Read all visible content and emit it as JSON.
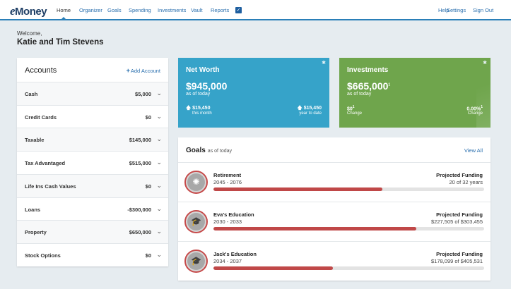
{
  "nav": {
    "logo_e": "e",
    "logo_rest": "Money",
    "items": [
      "Home",
      "Organizer",
      "Goals",
      "Spending",
      "Investments",
      "Vault",
      "Reports"
    ],
    "right_items": [
      "Help",
      "Settings",
      "Sign Out"
    ],
    "active": "Home"
  },
  "welcome": {
    "greeting": "Welcome,",
    "name": "Katie and Tim Stevens"
  },
  "accounts": {
    "title": "Accounts",
    "add_label": "Add Account",
    "rows": [
      {
        "label": "Cash",
        "value": "$5,000"
      },
      {
        "label": "Credit Cards",
        "value": "$0"
      },
      {
        "label": "Taxable",
        "value": "$145,000"
      },
      {
        "label": "Tax Advantaged",
        "value": "$515,000"
      },
      {
        "label": "Life Ins Cash Values",
        "value": "$0"
      },
      {
        "label": "Loans",
        "value": "-$300,000"
      },
      {
        "label": "Property",
        "value": "$650,000"
      },
      {
        "label": "Stock Options",
        "value": "$0"
      }
    ]
  },
  "net_worth": {
    "title": "Net Worth",
    "value": "$945,000",
    "sub": "as of today",
    "left_change": "$15,450",
    "left_label": "this month",
    "right_change": "$15,450",
    "right_label": "year to date",
    "color": "#36a3c9"
  },
  "investments": {
    "title": "Investments",
    "value": "$665,000",
    "sub": "as of today",
    "left_change": "$0",
    "left_label": "Change",
    "right_change": "0.00%",
    "right_label": "Change",
    "color": "#6fa54c"
  },
  "goals": {
    "title": "Goals",
    "asof": "as of today",
    "view_all": "View All",
    "items": [
      {
        "name": "Retirement",
        "years": "2045 - 2076",
        "heading": "Projected Funding",
        "detail": "20 of 32 years",
        "progress": 0.625,
        "icon": "sun-icon"
      },
      {
        "name": "Eva's Education",
        "years": "2030 - 2033",
        "heading": "Projected Funding",
        "detail": "$227,505 of $303,455",
        "progress": 0.75,
        "icon": "graduation-cap-icon"
      },
      {
        "name": "Jack's Education",
        "years": "2034 - 2037",
        "heading": "Projected Funding",
        "detail": "$178,099 of $405,531",
        "progress": 0.44,
        "icon": "graduation-cap-icon"
      }
    ]
  },
  "colors": {
    "accent": "#2a7fb8",
    "progress": "#c04848"
  }
}
